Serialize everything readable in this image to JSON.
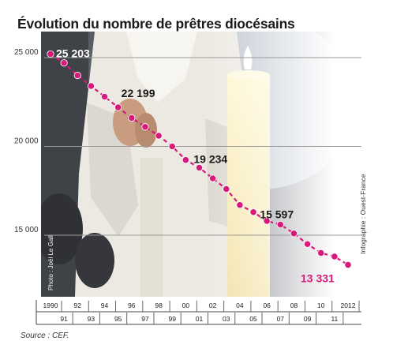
{
  "title": "Évolution du nombre de prêtres diocésains",
  "source": "Source : CEF.",
  "photo_credit": "Photo : Joël Le Gall",
  "infographic_credit": "Infographie : Ouest-France",
  "colors": {
    "series": "#d6197a",
    "grid": "#9a9a9a",
    "photo_sky": "#c7cfd9",
    "robe": "#ece9e2"
  },
  "chart_data": {
    "type": "line",
    "title": "Évolution du nombre de prêtres diocésains",
    "xlabel": "",
    "ylabel": "",
    "grid": true,
    "xlim": [
      1990,
      2012
    ],
    "ylim": [
      12000,
      25700
    ],
    "y_ticks": [
      {
        "value": 15000,
        "label": "15 000"
      },
      {
        "value": 20000,
        "label": "20 000"
      },
      {
        "value": 25000,
        "label": "25 000"
      }
    ],
    "x_ticks_top": [
      "1990",
      "92",
      "94",
      "96",
      "98",
      "00",
      "02",
      "04",
      "06",
      "08",
      "10",
      "2012"
    ],
    "x_ticks_bottom": [
      "91",
      "93",
      "95",
      "97",
      "99",
      "01",
      "03",
      "05",
      "07",
      "09",
      "11"
    ],
    "series": [
      {
        "x": [
          1990,
          1991,
          1992,
          1993,
          1994,
          1995,
          1996,
          1997,
          1998,
          1999,
          2000,
          2001,
          2002,
          2003,
          2004,
          2005,
          2006,
          2007,
          2008,
          2009,
          2010,
          2011,
          2012
        ],
        "values": [
          25203,
          24700,
          24000,
          23400,
          22800,
          22199,
          21600,
          21100,
          20600,
          20000,
          19234,
          18800,
          18200,
          17600,
          16700,
          16300,
          15800,
          15597,
          15100,
          14500,
          14000,
          13800,
          13331
        ]
      }
    ],
    "data_labels": [
      {
        "x": 1990,
        "value": 25203,
        "label": "25 203"
      },
      {
        "x": 1995,
        "value": 22199,
        "label": "22 199"
      },
      {
        "x": 2000,
        "value": 19234,
        "label": "19 234"
      },
      {
        "x": 2007,
        "value": 15597,
        "label": "15 597"
      },
      {
        "x": 2012,
        "value": 13331,
        "label": "13 331"
      }
    ]
  }
}
